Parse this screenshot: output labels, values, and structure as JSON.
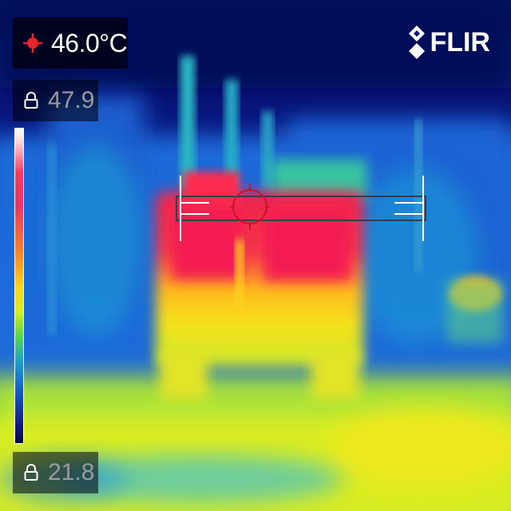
{
  "camera": {
    "brand": "FLIR",
    "spot_temperature": "46.0°C",
    "spot_icon": "crosshair-spot-icon",
    "lock_icon": "padlock-icon"
  },
  "scale": {
    "max_label": "47.9",
    "min_label": "21.8",
    "palette": [
      "#ffffff",
      "#ff3a5c",
      "#ff7a28",
      "#ffd21a",
      "#57d84a",
      "#1fa0c8",
      "#1656c8",
      "#141a84",
      "#08083a"
    ]
  },
  "colors": {
    "accent_spot": "#e8242c",
    "overlay_bg": "#00000a",
    "scene_background": "#070e6c"
  }
}
